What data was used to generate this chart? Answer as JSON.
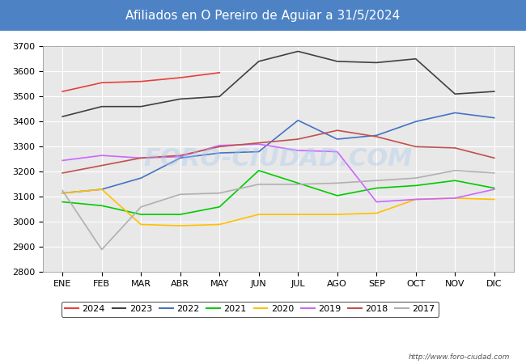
{
  "title": "Afiliados en O Pereiro de Aguiar a 31/5/2024",
  "title_bg": "#4d82c4",
  "xlabel": "",
  "ylabel": "",
  "ylim": [
    2800,
    3700
  ],
  "yticks": [
    2800,
    2900,
    3000,
    3100,
    3200,
    3300,
    3400,
    3500,
    3600,
    3700
  ],
  "months": [
    "ENE",
    "FEB",
    "MAR",
    "ABR",
    "MAY",
    "JUN",
    "JUL",
    "AGO",
    "SEP",
    "OCT",
    "NOV",
    "DIC"
  ],
  "series": {
    "2024": {
      "color": "#e8403a",
      "data": [
        3520,
        3555,
        3560,
        3575,
        3595,
        null,
        null,
        null,
        null,
        null,
        null,
        null
      ]
    },
    "2023": {
      "color": "#404040",
      "data": [
        3420,
        3460,
        3460,
        3490,
        3500,
        3640,
        3680,
        3640,
        3635,
        3650,
        3510,
        3520
      ]
    },
    "2022": {
      "color": "#4472c4",
      "data": [
        3115,
        3130,
        3175,
        3255,
        3275,
        3280,
        3405,
        3330,
        3345,
        3400,
        3435,
        3415
      ]
    },
    "2021": {
      "color": "#00cc00",
      "data": [
        3080,
        3065,
        3030,
        3030,
        3060,
        3205,
        3155,
        3105,
        3135,
        3145,
        3165,
        3135
      ]
    },
    "2020": {
      "color": "#ffc000",
      "data": [
        3115,
        3130,
        2990,
        2985,
        2990,
        3030,
        3030,
        3030,
        3035,
        3090,
        3095,
        3090
      ]
    },
    "2019": {
      "color": "#cc66ff",
      "data": [
        3245,
        3265,
        3255,
        3260,
        3305,
        3310,
        3285,
        3280,
        3080,
        3090,
        3095,
        3130
      ]
    },
    "2018": {
      "color": "#c0504d",
      "data": [
        3195,
        3225,
        3255,
        3265,
        3300,
        3315,
        3330,
        3365,
        3340,
        3300,
        3295,
        3255
      ]
    },
    "2017": {
      "color": "#b0b0b0",
      "data": [
        3125,
        2890,
        3060,
        3110,
        3115,
        3150,
        3150,
        3155,
        3165,
        3175,
        3205,
        3195
      ]
    }
  },
  "watermark": "FORO-CIUDAD.COM",
  "source_url": "http://www.foro-ciudad.com",
  "background_color": "#ffffff",
  "plot_bg_color": "#e8e8e8"
}
